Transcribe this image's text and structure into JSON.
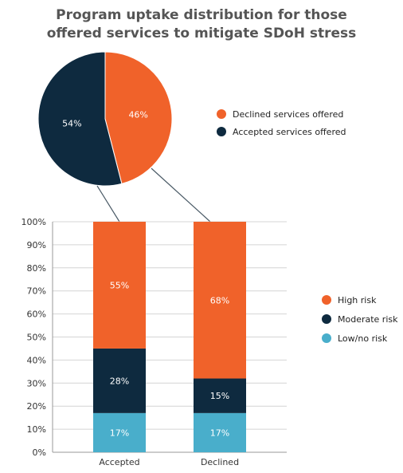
{
  "colors": {
    "declined": "#f0622a",
    "accepted": "#0e2a3f",
    "high_risk": "#f0622a",
    "moderate_risk": "#0e2a3f",
    "low_risk": "#49aecb",
    "connector": "#4a5a66",
    "grid": "#d4d4d4",
    "title": "#555555"
  },
  "chart_data": [
    {
      "type": "pie",
      "title_lines": [
        "Program uptake distribution for those",
        "offered services to mitigate SDoH stress"
      ],
      "slices": [
        {
          "name": "Declined services offered",
          "value": 46,
          "label": "46%",
          "color": "#f0622a"
        },
        {
          "name": "Accepted services offered",
          "value": 54,
          "label": "54%",
          "color": "#0e2a3f"
        }
      ],
      "legend": [
        "Declined services offered",
        "Accepted services offered"
      ],
      "legend_position": "right"
    },
    {
      "type": "bar",
      "stacked": true,
      "categories": [
        "Accepted",
        "Declined"
      ],
      "series": [
        {
          "name": "Low/no risk",
          "values": [
            17,
            17
          ],
          "labels": [
            "17%",
            "17%"
          ],
          "color": "#49aecb"
        },
        {
          "name": "Moderate risk",
          "values": [
            28,
            15
          ],
          "labels": [
            "28%",
            "15%"
          ],
          "color": "#0e2a3f"
        },
        {
          "name": "High risk",
          "values": [
            55,
            68
          ],
          "labels": [
            "55%",
            "68%"
          ],
          "color": "#f0622a"
        }
      ],
      "ylim": [
        0,
        100
      ],
      "yticks": [
        0,
        10,
        20,
        30,
        40,
        50,
        60,
        70,
        80,
        90,
        100
      ],
      "ytick_labels": [
        "0%",
        "10%",
        "20%",
        "30%",
        "40%",
        "50%",
        "60%",
        "70%",
        "80%",
        "90%",
        "100%"
      ],
      "grid": true,
      "legend": [
        "High risk",
        "Moderate risk",
        "Low/no risk"
      ],
      "legend_position": "right"
    }
  ]
}
